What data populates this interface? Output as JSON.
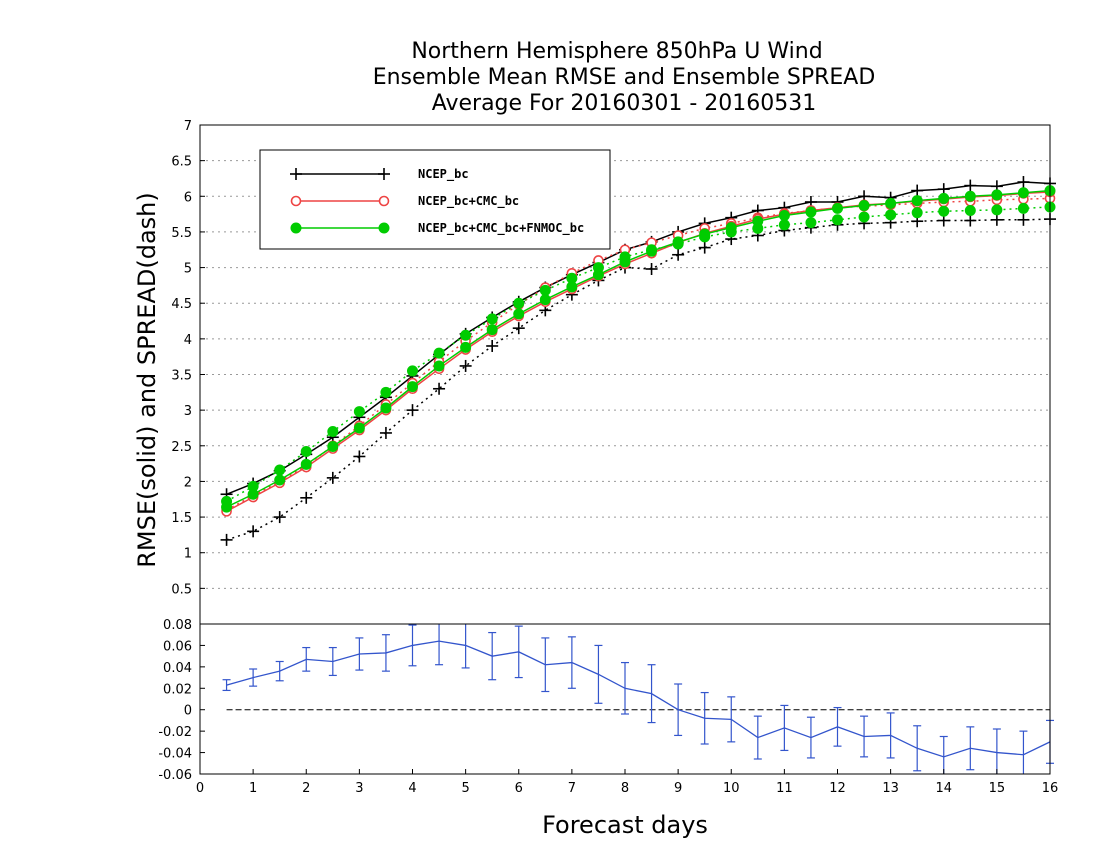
{
  "chart_data": {
    "type": "line",
    "title": [
      "Northern Hemisphere 850hPa U Wind",
      "Ensemble Mean RMSE and Ensemble SPREAD",
      "Average For 20160301 - 20160531"
    ],
    "xlabel": "Forecast days",
    "ylabel": "RMSE(solid) and SPREAD(dash)",
    "xlim": [
      0,
      16
    ],
    "xticks": [
      "0",
      "1",
      "2",
      "3",
      "4",
      "5",
      "6",
      "7",
      "8",
      "9",
      "10",
      "11",
      "12",
      "13",
      "14",
      "15",
      "16"
    ],
    "top_panel": {
      "ylim": [
        0,
        7
      ],
      "yticks": [
        "0.5",
        "1",
        "1.5",
        "2",
        "2.5",
        "3",
        "3.5",
        "4",
        "4.5",
        "5",
        "5.5",
        "6",
        "6.5",
        "7"
      ],
      "grid": "dotted horizontal",
      "legend": "top-left",
      "x": [
        0.5,
        1,
        1.5,
        2,
        2.5,
        3,
        3.5,
        4,
        4.5,
        5,
        5.5,
        6,
        6.5,
        7,
        7.5,
        8,
        8.5,
        9,
        9.5,
        10,
        10.5,
        11,
        11.5,
        12,
        12.5,
        13,
        13.5,
        14,
        14.5,
        15,
        15.5,
        16
      ],
      "series": [
        {
          "name": "NCEP_bc",
          "color": "#000000",
          "marker": "plus",
          "rmse": [
            1.82,
            1.97,
            2.15,
            2.38,
            2.62,
            2.9,
            3.18,
            3.48,
            3.78,
            4.07,
            4.3,
            4.52,
            4.72,
            4.9,
            5.07,
            5.25,
            5.36,
            5.5,
            5.62,
            5.7,
            5.8,
            5.84,
            5.92,
            5.92,
            6.0,
            5.98,
            6.08,
            6.1,
            6.15,
            6.14,
            6.2,
            6.18
          ],
          "spread": [
            1.18,
            1.3,
            1.5,
            1.77,
            2.05,
            2.35,
            2.68,
            3.0,
            3.3,
            3.62,
            3.9,
            4.15,
            4.4,
            4.62,
            4.82,
            5.0,
            4.98,
            5.18,
            5.28,
            5.4,
            5.45,
            5.52,
            5.56,
            5.6,
            5.62,
            5.63,
            5.65,
            5.66,
            5.66,
            5.67,
            5.67,
            5.68
          ]
        },
        {
          "name": "NCEP_bc+CMC_bc",
          "color": "#ee4444",
          "marker": "open-circle",
          "rmse": [
            1.58,
            1.78,
            1.98,
            2.2,
            2.46,
            2.72,
            3.0,
            3.3,
            3.58,
            3.85,
            4.1,
            4.32,
            4.52,
            4.7,
            4.88,
            5.05,
            5.2,
            5.35,
            5.48,
            5.58,
            5.68,
            5.75,
            5.8,
            5.84,
            5.88,
            5.9,
            5.93,
            5.96,
            5.99,
            6.01,
            6.04,
            6.06
          ],
          "spread": [
            1.6,
            1.8,
            2.0,
            2.22,
            2.5,
            2.78,
            3.08,
            3.38,
            3.68,
            3.97,
            4.23,
            4.48,
            4.72,
            4.92,
            5.1,
            5.25,
            5.35,
            5.45,
            5.55,
            5.62,
            5.7,
            5.76,
            5.8,
            5.84,
            5.86,
            5.88,
            5.9,
            5.92,
            5.93,
            5.95,
            5.96,
            5.97
          ]
        },
        {
          "name": "NCEP_bc+CMC_bc+FNMOC_bc",
          "color": "#00cc00",
          "marker": "filled-circle",
          "rmse": [
            1.64,
            1.82,
            2.02,
            2.24,
            2.49,
            2.75,
            3.03,
            3.33,
            3.62,
            3.88,
            4.13,
            4.35,
            4.55,
            4.73,
            4.9,
            5.08,
            5.23,
            5.36,
            5.47,
            5.56,
            5.65,
            5.73,
            5.78,
            5.83,
            5.87,
            5.9,
            5.94,
            5.97,
            6.0,
            6.02,
            6.05,
            6.08
          ],
          "spread": [
            1.72,
            1.93,
            2.16,
            2.42,
            2.7,
            2.98,
            3.25,
            3.55,
            3.8,
            4.05,
            4.28,
            4.5,
            4.68,
            4.85,
            5.0,
            5.15,
            5.25,
            5.33,
            5.43,
            5.5,
            5.55,
            5.6,
            5.63,
            5.67,
            5.71,
            5.74,
            5.77,
            5.79,
            5.8,
            5.81,
            5.83,
            5.85
          ]
        }
      ]
    },
    "bottom_panel": {
      "ylim": [
        -0.06,
        0.08
      ],
      "yticks": [
        "-0.06",
        "-0.04",
        "-0.02",
        "0",
        "0.02",
        "0.04",
        "0.06",
        "0.08"
      ],
      "color": "#3355cc",
      "x": [
        0.5,
        1,
        1.5,
        2,
        2.5,
        3,
        3.5,
        4,
        4.5,
        5,
        5.5,
        6,
        6.5,
        7,
        7.5,
        8,
        8.5,
        9,
        9.5,
        10,
        10.5,
        11,
        11.5,
        12,
        12.5,
        13,
        13.5,
        14,
        14.5,
        15,
        15.5,
        16
      ],
      "values": [
        0.023,
        0.03,
        0.036,
        0.047,
        0.045,
        0.052,
        0.053,
        0.06,
        0.064,
        0.06,
        0.05,
        0.054,
        0.042,
        0.044,
        0.033,
        0.02,
        0.015,
        0.0,
        -0.008,
        -0.009,
        -0.026,
        -0.017,
        -0.026,
        -0.016,
        -0.025,
        -0.024,
        -0.036,
        -0.044,
        -0.036,
        -0.04,
        -0.042,
        -0.03
      ],
      "errors": [
        0.005,
        0.008,
        0.009,
        0.011,
        0.013,
        0.015,
        0.017,
        0.019,
        0.022,
        0.021,
        0.022,
        0.024,
        0.025,
        0.024,
        0.027,
        0.024,
        0.027,
        0.024,
        0.024,
        0.021,
        0.02,
        0.021,
        0.019,
        0.018,
        0.019,
        0.021,
        0.021,
        0.019,
        0.02,
        0.022,
        0.022,
        0.02
      ]
    }
  }
}
